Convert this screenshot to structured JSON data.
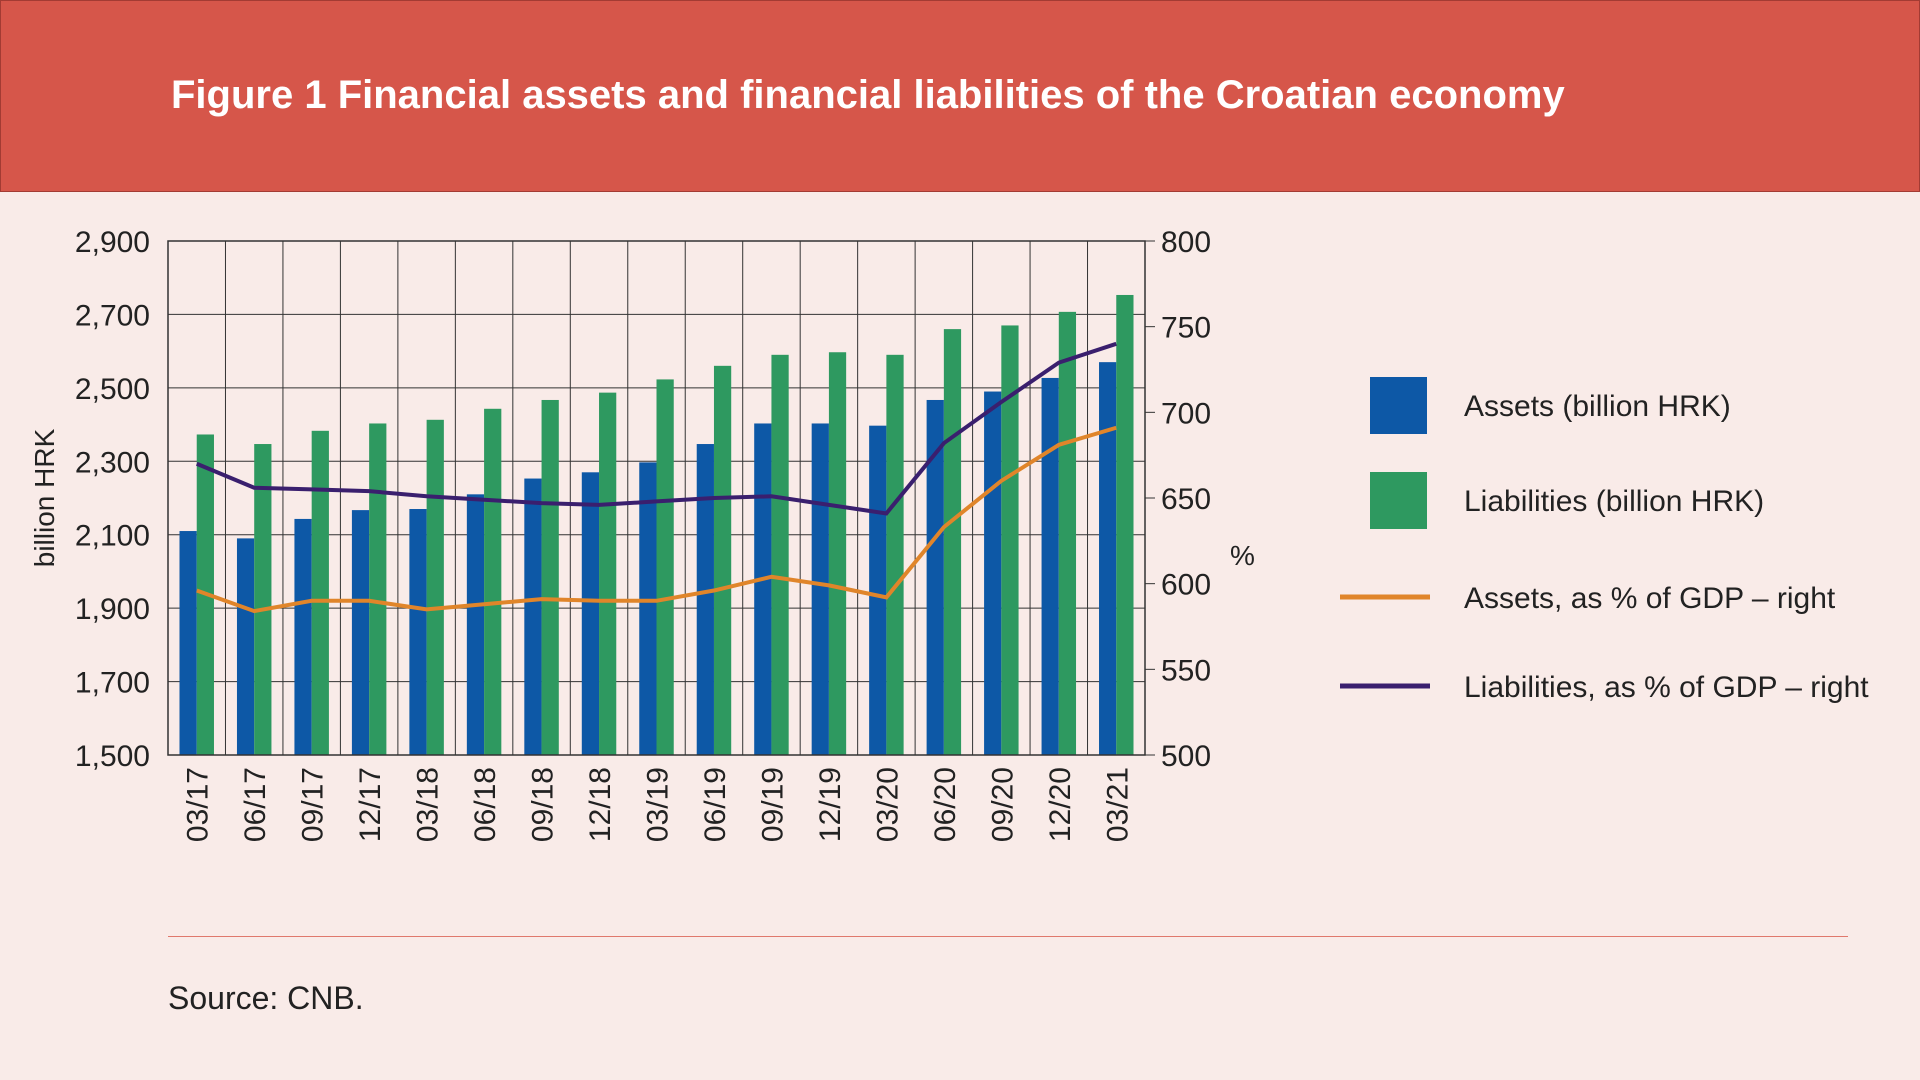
{
  "title": "Figure 1 Financial assets and financial liabilities of the Croatian economy",
  "source": "Source: CNB.",
  "chart_data": {
    "type": "bar",
    "categories": [
      "03/17",
      "06/17",
      "09/17",
      "12/17",
      "03/18",
      "06/18",
      "09/18",
      "12/18",
      "03/19",
      "06/19",
      "09/19",
      "12/19",
      "03/20",
      "06/20",
      "09/20",
      "12/20",
      "03/21"
    ],
    "ylabel": "billion HRK",
    "ylabel_right": "%",
    "ylim": [
      1500,
      2900
    ],
    "yticks": [
      "1,500",
      "1,700",
      "1,900",
      "2,100",
      "2,300",
      "2,500",
      "2,700",
      "2,900"
    ],
    "ylim_right": [
      500,
      800
    ],
    "yticks_right": [
      "500",
      "550",
      "600",
      "650",
      "700",
      "750",
      "800"
    ],
    "grid": true,
    "legend": "right",
    "series": [
      {
        "name": "Assets (billion HRK)",
        "kind": "bar",
        "color": "#0d58a6",
        "values": [
          2110,
          2090,
          2143,
          2167,
          2170,
          2210,
          2253,
          2270,
          2297,
          2347,
          2403,
          2403,
          2397,
          2467,
          2490,
          2527,
          2570
        ]
      },
      {
        "name": "Liabilities (billion HRK)",
        "kind": "bar",
        "color": "#2e9960",
        "values": [
          2373,
          2347,
          2383,
          2403,
          2413,
          2443,
          2467,
          2487,
          2523,
          2560,
          2590,
          2597,
          2590,
          2660,
          2670,
          2707,
          2753
        ]
      },
      {
        "name": "Assets, as % of GDP – right",
        "kind": "line",
        "axis": "right",
        "color": "#e0852a",
        "values": [
          596,
          584,
          590,
          590,
          585,
          588,
          591,
          590,
          590,
          596,
          604,
          599,
          592,
          633,
          660,
          681,
          691
        ]
      },
      {
        "name": "Liabilities, as % of GDP – right",
        "kind": "line",
        "axis": "right",
        "color": "#3a1f6e",
        "values": [
          670,
          656,
          655,
          654,
          651,
          649,
          647,
          646,
          648,
          650,
          651,
          646,
          641,
          682,
          706,
          729,
          740
        ]
      }
    ]
  }
}
